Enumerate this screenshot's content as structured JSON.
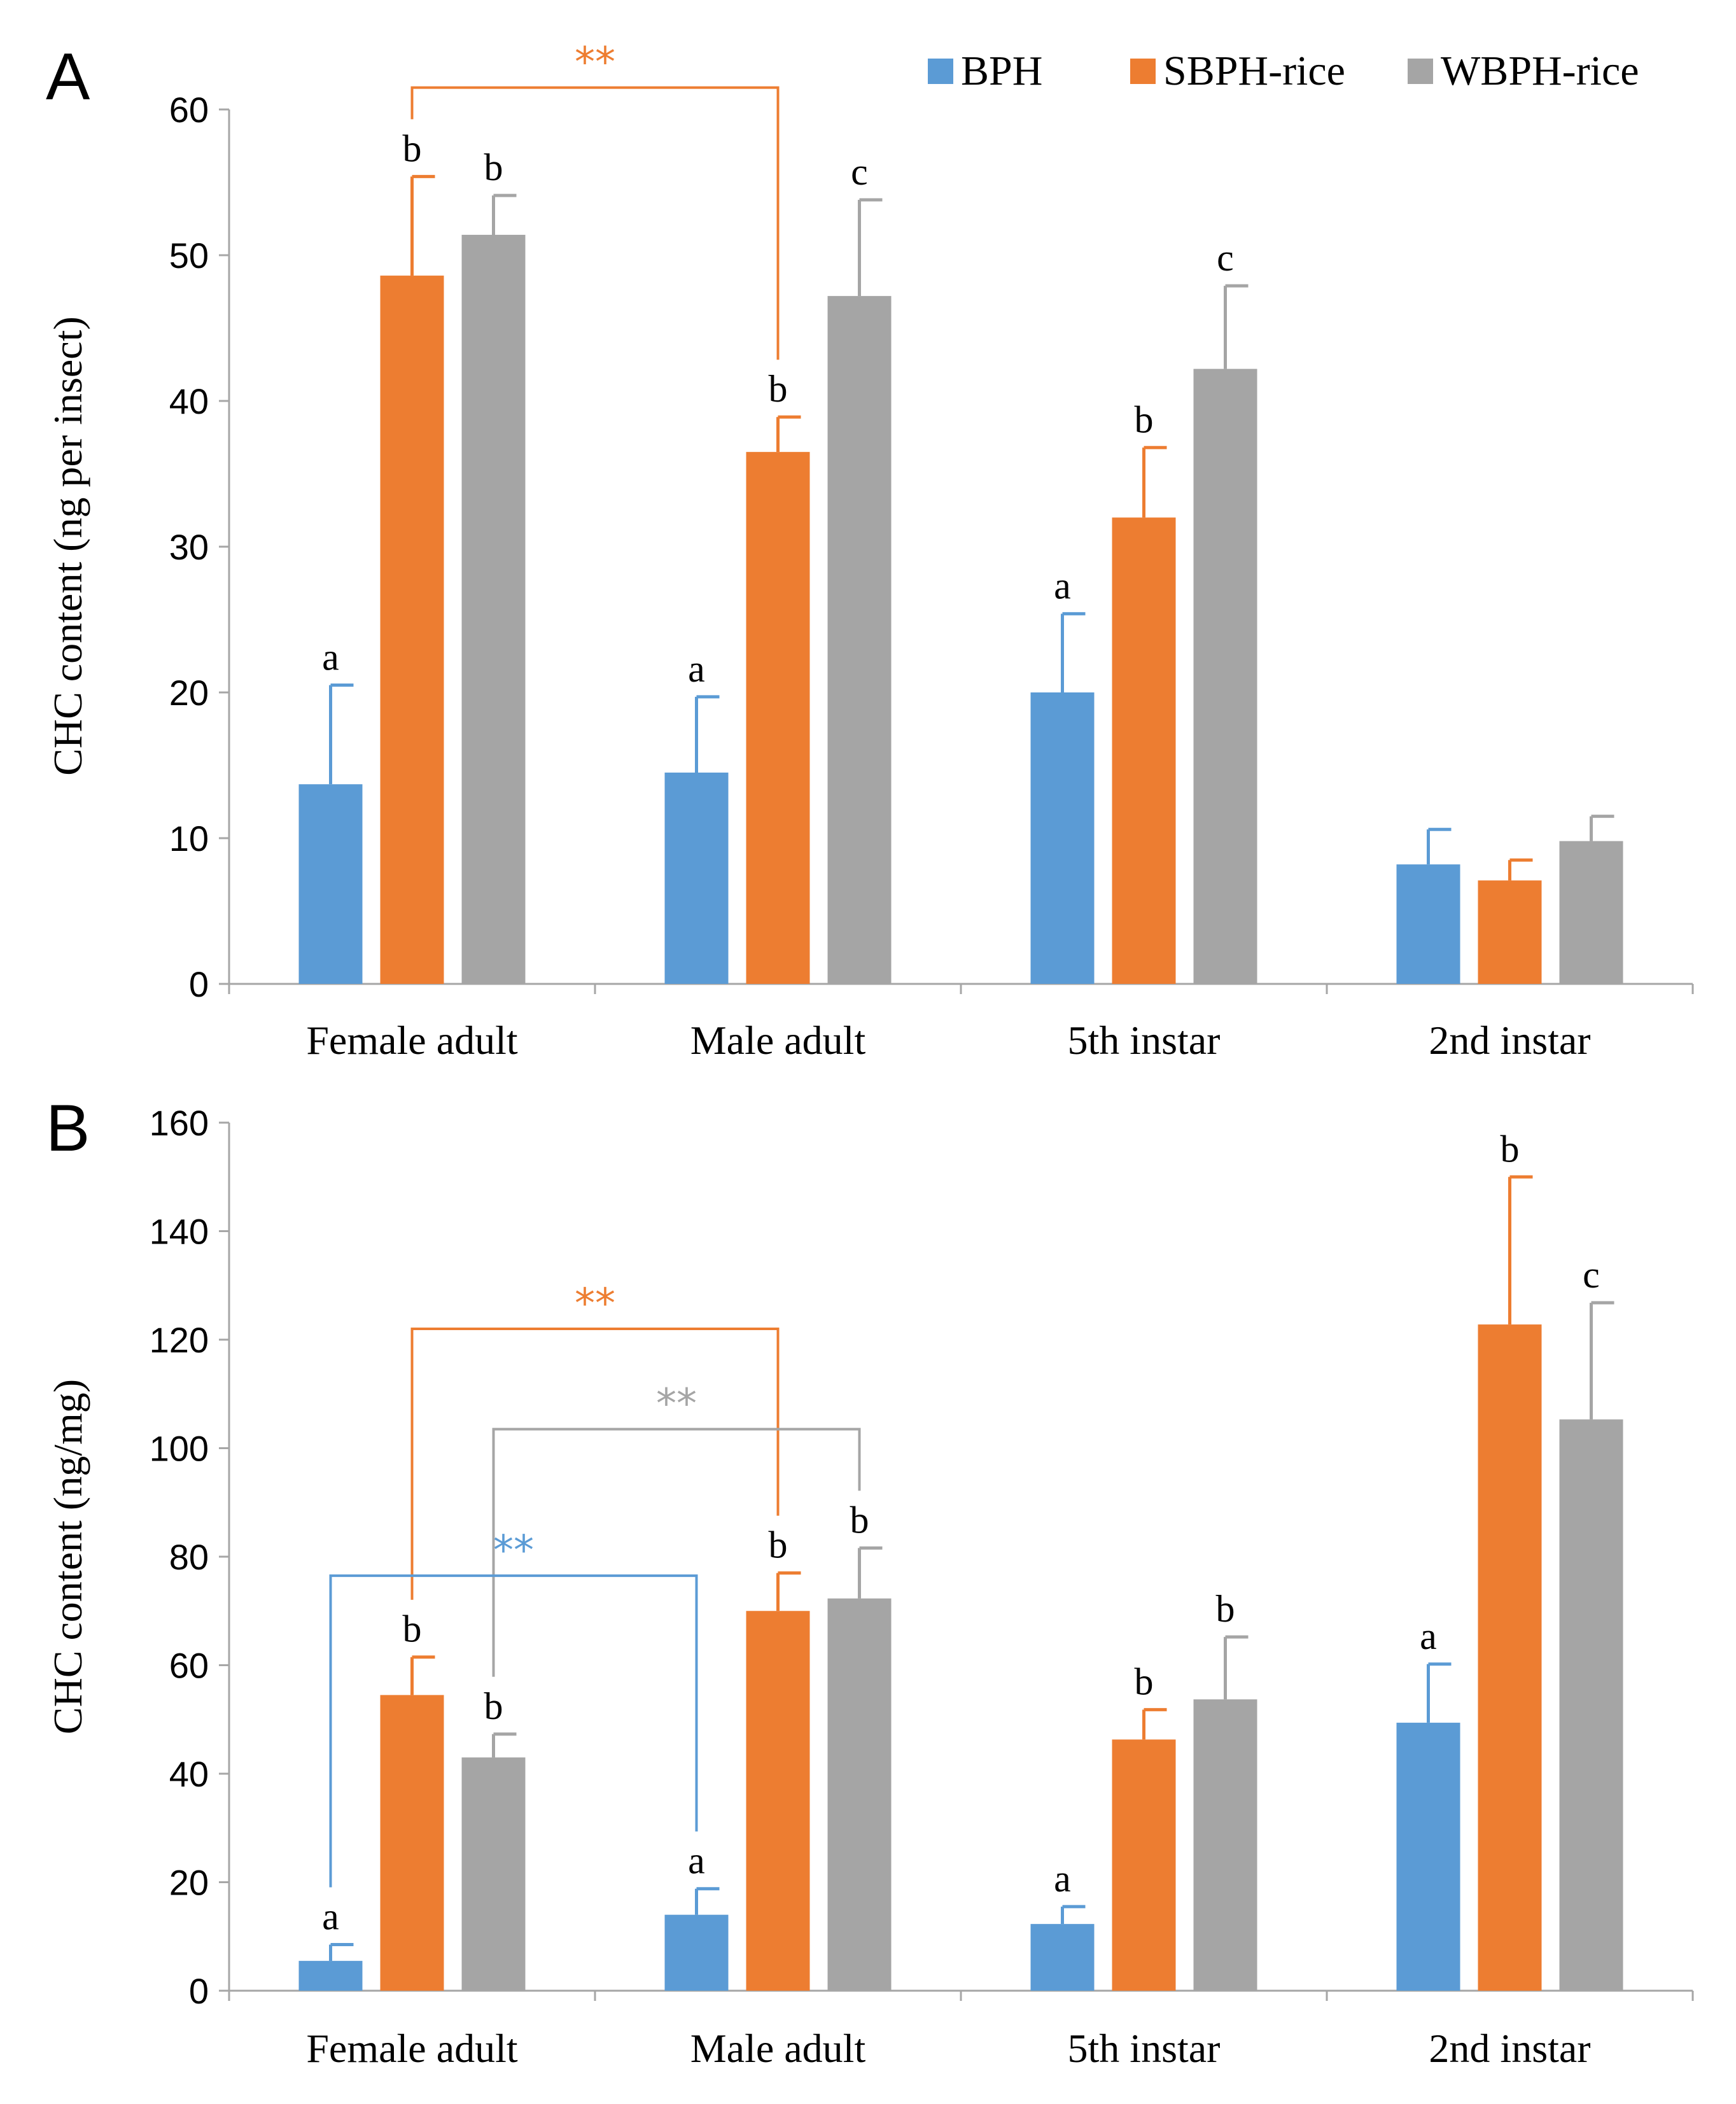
{
  "legend": [
    {
      "name": "BPH",
      "color": "#5B9BD5"
    },
    {
      "name": "SBPH-rice",
      "color": "#ED7D31"
    },
    {
      "name": "WBPH-rice",
      "color": "#A5A5A5"
    }
  ],
  "chart_data": [
    {
      "panel": "A",
      "type": "bar",
      "title": "",
      "xlabel": "",
      "ylabel": "CHC content (ng per insect)",
      "ylim": [
        0,
        60
      ],
      "yticks": [
        "0",
        "10",
        "20",
        "30",
        "40",
        "50",
        "60"
      ],
      "categories": [
        "Female adult",
        "Male adult",
        "5th instar",
        "2nd instar"
      ],
      "series": [
        {
          "name": "BPH",
          "color": "#5B9BD5",
          "values": [
            13.7,
            14.5,
            20.0,
            8.2
          ],
          "errors": [
            6.8,
            5.2,
            5.4,
            2.4
          ],
          "letters": [
            "a",
            "a",
            "a",
            ""
          ]
        },
        {
          "name": "SBPH-rice",
          "color": "#ED7D31",
          "values": [
            48.6,
            36.5,
            32.0,
            7.1
          ],
          "errors": [
            6.8,
            2.4,
            4.8,
            1.4
          ],
          "letters": [
            "b",
            "b",
            "b",
            ""
          ]
        },
        {
          "name": "WBPH-rice",
          "color": "#A5A5A5",
          "values": [
            51.4,
            47.2,
            42.2,
            9.8
          ],
          "errors": [
            2.7,
            6.6,
            5.7,
            1.7
          ],
          "letters": [
            "b",
            "c",
            "c",
            ""
          ]
        }
      ],
      "significance": [
        {
          "label": "**",
          "color": "#ED7D31",
          "from": {
            "series": 1,
            "category": 0
          },
          "to": {
            "series": 1,
            "category": 1
          },
          "level": 61.5
        }
      ]
    },
    {
      "panel": "B",
      "type": "bar",
      "title": "",
      "xlabel": "",
      "ylabel": "CHC content (ng/mg)",
      "ylim": [
        0,
        160
      ],
      "yticks": [
        "0",
        "20",
        "40",
        "60",
        "80",
        "100",
        "120",
        "140",
        "160"
      ],
      "categories": [
        "Female adult",
        "Male adult",
        "5th instar",
        "2nd instar"
      ],
      "series": [
        {
          "name": "BPH",
          "color": "#5B9BD5",
          "values": [
            5.5,
            14.0,
            12.3,
            49.4
          ],
          "errors": [
            3.0,
            4.8,
            3.2,
            10.8
          ],
          "letters": [
            "a",
            "a",
            "a",
            "a"
          ]
        },
        {
          "name": "SBPH-rice",
          "color": "#ED7D31",
          "values": [
            54.5,
            70.0,
            46.3,
            122.8
          ],
          "errors": [
            7.0,
            7.0,
            5.5,
            27.2
          ],
          "letters": [
            "b",
            "b",
            "b",
            "b"
          ]
        },
        {
          "name": "WBPH-rice",
          "color": "#A5A5A5",
          "values": [
            43.0,
            72.3,
            53.7,
            105.3
          ],
          "errors": [
            4.3,
            9.3,
            11.5,
            21.5
          ],
          "letters": [
            "b",
            "b",
            "b",
            "c"
          ]
        }
      ],
      "significance": [
        {
          "label": "**",
          "color": "#ED7D31",
          "from": {
            "series": 1,
            "category": 0
          },
          "to": {
            "series": 1,
            "category": 1
          },
          "level": 122.0
        },
        {
          "label": "**",
          "color": "#A5A5A5",
          "from": {
            "series": 2,
            "category": 0
          },
          "to": {
            "series": 2,
            "category": 1
          },
          "level": 103.5
        },
        {
          "label": "**",
          "color": "#5B9BD5",
          "from": {
            "series": 0,
            "category": 0
          },
          "to": {
            "series": 0,
            "category": 1
          },
          "level": 76.5
        }
      ]
    }
  ]
}
